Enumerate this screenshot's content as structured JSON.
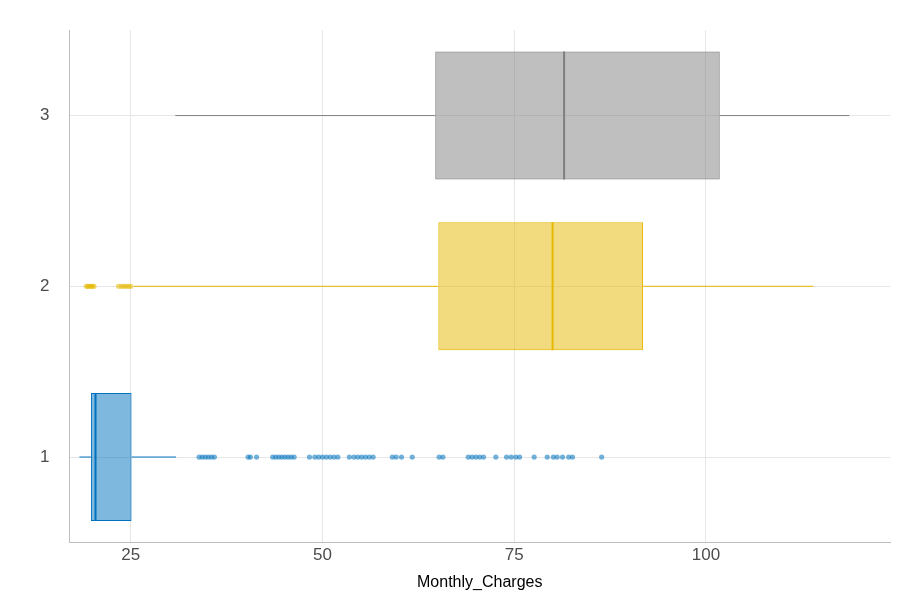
{
  "chart_data": {
    "type": "boxplot",
    "orientation": "horizontal",
    "x_label": "Monthly_Charges",
    "categories": [
      "1",
      "2",
      "3"
    ],
    "xlim": [
      17,
      124
    ],
    "xticks": [
      25,
      50,
      75,
      100
    ],
    "grid": true,
    "boxes": [
      {
        "category": "1",
        "whisker_low": 18.3,
        "q1": 19.8,
        "median": 20.4,
        "q3": 25.1,
        "whisker_high": 30.9,
        "color": "#0072bd",
        "outliers": [
          33.9,
          34.3,
          34.7,
          35.1,
          35.5,
          35.9,
          40.3,
          40.6,
          41.4,
          43.5,
          43.9,
          44.3,
          44.7,
          45.1,
          45.5,
          45.9,
          46.3,
          48.3,
          49.0,
          49.5,
          50.0,
          50.5,
          51.0,
          51.5,
          52.0,
          53.5,
          54.1,
          54.6,
          55.1,
          55.6,
          56.1,
          56.6,
          59.1,
          59.6,
          60.3,
          61.7,
          65.2,
          65.7,
          69.0,
          69.5,
          70.0,
          70.5,
          71.0,
          72.6,
          74.0,
          74.6,
          75.2,
          75.7,
          77.6,
          79.3,
          80.1,
          80.6,
          81.3,
          82.1,
          82.6,
          86.4
        ]
      },
      {
        "category": "2",
        "whisker_low": 25.4,
        "q1": 65.1,
        "median": 80.0,
        "q3": 91.8,
        "whisker_high": 114.0,
        "color": "#e6b800",
        "outliers": [
          19.2,
          19.4,
          19.6,
          19.8,
          20.0,
          20.2,
          23.4,
          23.8,
          24.1,
          24.4,
          24.7,
          25.0
        ]
      },
      {
        "category": "3",
        "whisker_low": 30.8,
        "q1": 64.7,
        "median": 81.5,
        "q3": 101.8,
        "whisker_high": 118.7,
        "color": "#7f7f7f",
        "outliers": []
      }
    ]
  }
}
